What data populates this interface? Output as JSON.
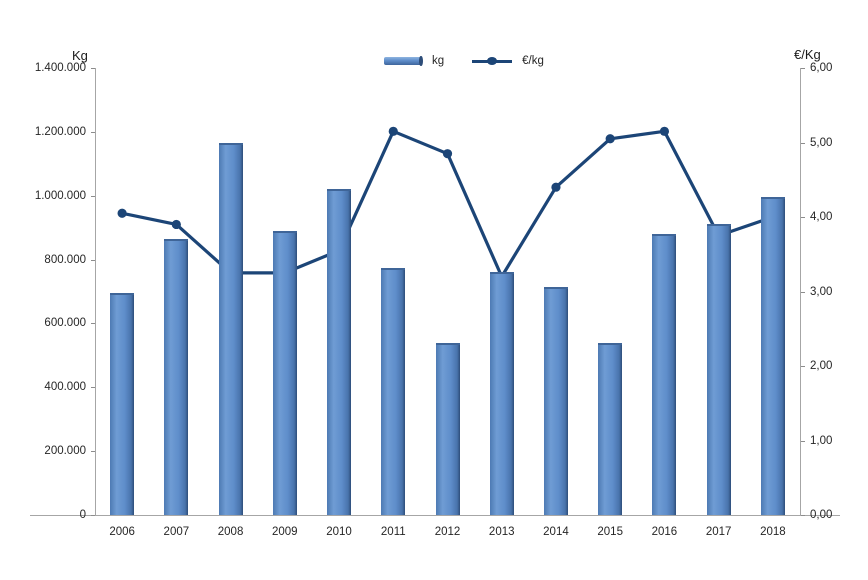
{
  "chart_data": {
    "type": "combo",
    "title": "",
    "categories": [
      "2006",
      "2007",
      "2008",
      "2009",
      "2010",
      "2011",
      "2012",
      "2013",
      "2014",
      "2015",
      "2016",
      "2017",
      "2018"
    ],
    "series": [
      {
        "name": "kg",
        "type": "bar",
        "axis": "left",
        "values": [
          695000,
          865000,
          1165000,
          890000,
          1020000,
          775000,
          540000,
          760000,
          715000,
          540000,
          880000,
          910000,
          995000
        ]
      },
      {
        "name": "€/kg",
        "type": "line",
        "axis": "right",
        "values": [
          4.05,
          3.9,
          3.25,
          3.25,
          3.55,
          5.15,
          4.85,
          3.2,
          4.4,
          5.05,
          5.15,
          3.75,
          4.0
        ]
      }
    ],
    "left_axis": {
      "title": "Kg",
      "min": 0,
      "max": 1400000,
      "step": 200000,
      "tick_labels": [
        "0",
        "200.000",
        "400.000",
        "600.000",
        "800.000",
        "1.000.000",
        "1.200.000",
        "1.400.000"
      ]
    },
    "right_axis": {
      "title": "€/Kg",
      "min": 0,
      "max": 6,
      "step": 1,
      "tick_labels": [
        "0,00",
        "1,00",
        "2,00",
        "3,00",
        "4,00",
        "5,00",
        "6,00"
      ]
    },
    "legend": {
      "position": "top-center",
      "entries": [
        "kg",
        "€/kg"
      ]
    },
    "grid": "off",
    "colors": {
      "bar_fill": "#5e8dca",
      "bar_edge": "#2d4d79",
      "line": "#1c4577",
      "axis": "#a6a6a6",
      "text": "#262626"
    }
  },
  "legend": {
    "kg_label": "kg",
    "eur_label": "€/kg"
  },
  "axes": {
    "left_title": "Kg",
    "right_title": "€/Kg"
  }
}
